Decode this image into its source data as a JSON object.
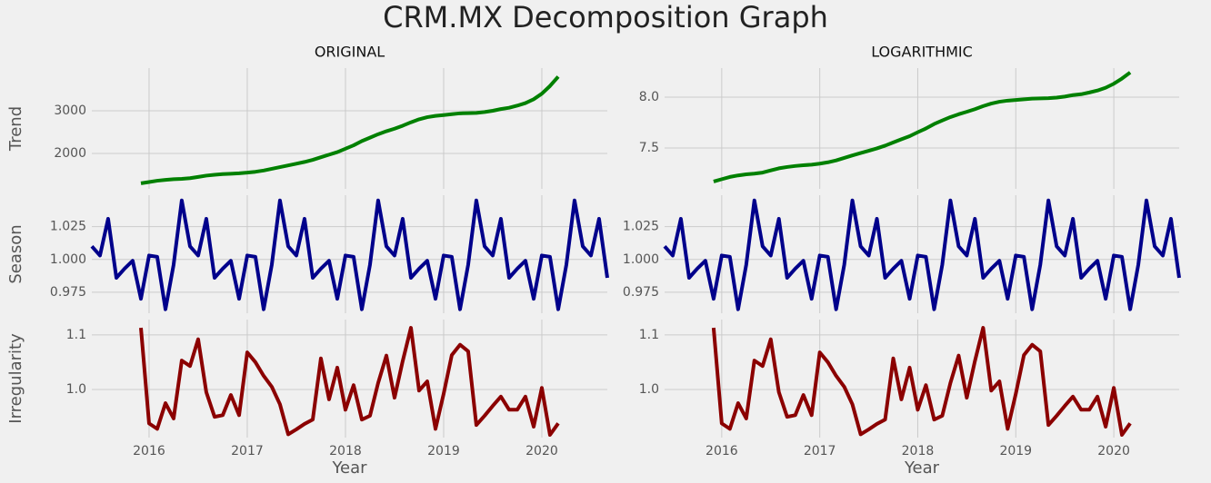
{
  "title": "CRM.MX Decomposition Graph",
  "chart_data": [
    {
      "type": "line",
      "title": "ORIGINAL",
      "ylabel": "Trend",
      "grid": true,
      "x": [
        2015.917,
        2016,
        2016.083,
        2016.167,
        2016.25,
        2016.333,
        2016.417,
        2016.5,
        2016.583,
        2016.667,
        2016.75,
        2016.833,
        2016.917,
        2017,
        2017.083,
        2017.167,
        2017.25,
        2017.333,
        2017.417,
        2017.5,
        2017.583,
        2017.667,
        2017.75,
        2017.833,
        2017.917,
        2018,
        2018.083,
        2018.167,
        2018.25,
        2018.333,
        2018.417,
        2018.5,
        2018.583,
        2018.667,
        2018.75,
        2018.833,
        2018.917,
        2019,
        2019.083,
        2019.167,
        2019.25,
        2019.333,
        2019.417,
        2019.5,
        2019.583,
        2019.667,
        2019.75,
        2019.833,
        2019.917,
        2020,
        2020.083,
        2020.167
      ],
      "series": [
        {
          "color": "#008000",
          "values": [
            1300,
            1330,
            1360,
            1380,
            1395,
            1405,
            1420,
            1450,
            1480,
            1500,
            1515,
            1525,
            1535,
            1550,
            1570,
            1600,
            1640,
            1680,
            1720,
            1760,
            1800,
            1850,
            1910,
            1970,
            2030,
            2110,
            2190,
            2290,
            2370,
            2450,
            2520,
            2580,
            2650,
            2730,
            2800,
            2850,
            2880,
            2900,
            2920,
            2940,
            2945,
            2950,
            2970,
            3000,
            3040,
            3070,
            3120,
            3180,
            3270,
            3400,
            3580,
            3800
          ]
        }
      ],
      "xlim": [
        2015.417,
        2020.667
      ],
      "xticks": [
        2016,
        2017,
        2018,
        2019,
        2020
      ],
      "ylim": [
        1170,
        4000
      ],
      "yticks": [
        2000,
        3000
      ]
    },
    {
      "type": "line",
      "ylabel": "Season",
      "grid": true,
      "x": [
        2015.417,
        2015.5,
        2015.583,
        2015.667,
        2015.75,
        2015.833,
        2015.917,
        2016,
        2016.083,
        2016.167,
        2016.25,
        2016.333,
        2016.417,
        2016.5,
        2016.583,
        2016.667,
        2016.75,
        2016.833,
        2016.917,
        2017,
        2017.083,
        2017.167,
        2017.25,
        2017.333,
        2017.417,
        2017.5,
        2017.583,
        2017.667,
        2017.75,
        2017.833,
        2017.917,
        2018,
        2018.083,
        2018.167,
        2018.25,
        2018.333,
        2018.417,
        2018.5,
        2018.583,
        2018.667,
        2018.75,
        2018.833,
        2018.917,
        2019,
        2019.083,
        2019.167,
        2019.25,
        2019.333,
        2019.417,
        2019.5,
        2019.583,
        2019.667,
        2019.75,
        2019.833,
        2019.917,
        2020,
        2020.083,
        2020.167,
        2020.25,
        2020.333,
        2020.417,
        2020.5,
        2020.583,
        2020.667
      ],
      "series": [
        {
          "color": "#00008b",
          "values": [
            1.01,
            1.003,
            1.031,
            0.986,
            0.993,
            0.999,
            0.97,
            1.003,
            1.002,
            0.962,
            0.996,
            1.045,
            1.01,
            1.003,
            1.031,
            0.986,
            0.993,
            0.999,
            0.97,
            1.003,
            1.002,
            0.962,
            0.996,
            1.045,
            1.01,
            1.003,
            1.031,
            0.986,
            0.993,
            0.999,
            0.97,
            1.003,
            1.002,
            0.962,
            0.996,
            1.045,
            1.01,
            1.003,
            1.031,
            0.986,
            0.993,
            0.999,
            0.97,
            1.003,
            1.002,
            0.962,
            0.996,
            1.045,
            1.01,
            1.003,
            1.031,
            0.986,
            0.993,
            0.999,
            0.97,
            1.003,
            1.002,
            0.962,
            0.996,
            1.045,
            1.01,
            1.003,
            1.031,
            0.986
          ]
        }
      ],
      "xlim": [
        2015.417,
        2020.667
      ],
      "xticks": [
        2016,
        2017,
        2018,
        2019,
        2020
      ],
      "ylim": [
        0.959,
        1.049
      ],
      "yticks": [
        0.975,
        {
          "value": 1,
          "label": "1.000"
        },
        1.025
      ]
    },
    {
      "type": "line",
      "ylabel": "Irregularity",
      "xlabel": "Year",
      "grid": true,
      "x": [
        2015.917,
        2016,
        2016.083,
        2016.167,
        2016.25,
        2016.333,
        2016.417,
        2016.5,
        2016.583,
        2016.667,
        2016.75,
        2016.833,
        2016.917,
        2017,
        2017.083,
        2017.167,
        2017.25,
        2017.333,
        2017.417,
        2017.5,
        2017.583,
        2017.667,
        2017.75,
        2017.833,
        2017.917,
        2018,
        2018.083,
        2018.167,
        2018.25,
        2018.333,
        2018.417,
        2018.5,
        2018.583,
        2018.667,
        2018.75,
        2018.833,
        2018.917,
        2019,
        2019.083,
        2019.167,
        2019.25,
        2019.333,
        2019.417,
        2019.5,
        2019.583,
        2019.667,
        2019.75,
        2019.833,
        2019.917,
        2020,
        2020.083,
        2020.167
      ],
      "series": [
        {
          "color": "#8b0000",
          "values": [
            1.113,
            0.938,
            0.928,
            0.975,
            0.947,
            1.053,
            1.043,
            1.092,
            0.995,
            0.95,
            0.953,
            0.99,
            0.953,
            1.068,
            1.05,
            1.025,
            1.005,
            0.973,
            0.918,
            0.927,
            0.937,
            0.945,
            1.057,
            0.982,
            1.04,
            0.963,
            1.008,
            0.945,
            0.952,
            1.012,
            1.062,
            0.985,
            1.052,
            1.113,
            0.998,
            1.015,
            0.928,
            0.992,
            1.063,
            1.082,
            1.07,
            0.935,
            0.952,
            0.97,
            0.987,
            0.963,
            0.963,
            0.987,
            0.932,
            1.003,
            0.917,
            0.938
          ]
        }
      ],
      "xlim": [
        2015.417,
        2020.667
      ],
      "xticks": [
        2016,
        2017,
        2018,
        2019,
        2020
      ],
      "ylim": [
        0.912,
        1.128
      ],
      "yticks": [
        {
          "value": 1,
          "label": "1.0"
        },
        1.1
      ]
    },
    {
      "type": "line",
      "title": "LOGARITHMIC",
      "grid": true,
      "x": [
        2015.917,
        2016,
        2016.083,
        2016.167,
        2016.25,
        2016.333,
        2016.417,
        2016.5,
        2016.583,
        2016.667,
        2016.75,
        2016.833,
        2016.917,
        2017,
        2017.083,
        2017.167,
        2017.25,
        2017.333,
        2017.417,
        2017.5,
        2017.583,
        2017.667,
        2017.75,
        2017.833,
        2017.917,
        2018,
        2018.083,
        2018.167,
        2018.25,
        2018.333,
        2018.417,
        2018.5,
        2018.583,
        2018.667,
        2018.75,
        2018.833,
        2018.917,
        2019,
        2019.083,
        2019.167,
        2019.25,
        2019.333,
        2019.417,
        2019.5,
        2019.583,
        2019.667,
        2019.75,
        2019.833,
        2019.917,
        2020,
        2020.083,
        2020.167
      ],
      "series": [
        {
          "color": "#008000",
          "values": [
            7.17,
            7.193,
            7.215,
            7.23,
            7.241,
            7.248,
            7.258,
            7.279,
            7.3,
            7.313,
            7.323,
            7.33,
            7.336,
            7.346,
            7.359,
            7.378,
            7.402,
            7.427,
            7.45,
            7.473,
            7.496,
            7.523,
            7.555,
            7.586,
            7.616,
            7.655,
            7.692,
            7.736,
            7.771,
            7.804,
            7.832,
            7.856,
            7.882,
            7.912,
            7.937,
            7.955,
            7.966,
            7.972,
            7.979,
            7.986,
            7.988,
            7.99,
            7.996,
            8.006,
            8.02,
            8.029,
            8.046,
            8.065,
            8.093,
            8.132,
            8.183,
            8.243
          ]
        }
      ],
      "xlim": [
        2015.417,
        2020.667
      ],
      "xticks": [
        2016,
        2017,
        2018,
        2019,
        2020
      ],
      "ylim": [
        7.098,
        8.286
      ],
      "yticks": [
        7.5,
        {
          "value": 8,
          "label": "8.0"
        }
      ]
    },
    {
      "type": "line",
      "grid": true,
      "x": [
        2015.417,
        2015.5,
        2015.583,
        2015.667,
        2015.75,
        2015.833,
        2015.917,
        2016,
        2016.083,
        2016.167,
        2016.25,
        2016.333,
        2016.417,
        2016.5,
        2016.583,
        2016.667,
        2016.75,
        2016.833,
        2016.917,
        2017,
        2017.083,
        2017.167,
        2017.25,
        2017.333,
        2017.417,
        2017.5,
        2017.583,
        2017.667,
        2017.75,
        2017.833,
        2017.917,
        2018,
        2018.083,
        2018.167,
        2018.25,
        2018.333,
        2018.417,
        2018.5,
        2018.583,
        2018.667,
        2018.75,
        2018.833,
        2018.917,
        2019,
        2019.083,
        2019.167,
        2019.25,
        2019.333,
        2019.417,
        2019.5,
        2019.583,
        2019.667,
        2019.75,
        2019.833,
        2019.917,
        2020,
        2020.083,
        2020.167,
        2020.25,
        2020.333,
        2020.417,
        2020.5,
        2020.583,
        2020.667
      ],
      "series": [
        {
          "color": "#00008b",
          "values": [
            1.01,
            1.003,
            1.031,
            0.986,
            0.993,
            0.999,
            0.97,
            1.003,
            1.002,
            0.962,
            0.996,
            1.045,
            1.01,
            1.003,
            1.031,
            0.986,
            0.993,
            0.999,
            0.97,
            1.003,
            1.002,
            0.962,
            0.996,
            1.045,
            1.01,
            1.003,
            1.031,
            0.986,
            0.993,
            0.999,
            0.97,
            1.003,
            1.002,
            0.962,
            0.996,
            1.045,
            1.01,
            1.003,
            1.031,
            0.986,
            0.993,
            0.999,
            0.97,
            1.003,
            1.002,
            0.962,
            0.996,
            1.045,
            1.01,
            1.003,
            1.031,
            0.986,
            0.993,
            0.999,
            0.97,
            1.003,
            1.002,
            0.962,
            0.996,
            1.045,
            1.01,
            1.003,
            1.031,
            0.986
          ]
        }
      ],
      "xlim": [
        2015.417,
        2020.667
      ],
      "xticks": [
        2016,
        2017,
        2018,
        2019,
        2020
      ],
      "ylim": [
        0.959,
        1.049
      ],
      "yticks": [
        0.975,
        {
          "value": 1,
          "label": "1.000"
        },
        1.025
      ]
    },
    {
      "type": "line",
      "xlabel": "Year",
      "grid": true,
      "x": [
        2015.917,
        2016,
        2016.083,
        2016.167,
        2016.25,
        2016.333,
        2016.417,
        2016.5,
        2016.583,
        2016.667,
        2016.75,
        2016.833,
        2016.917,
        2017,
        2017.083,
        2017.167,
        2017.25,
        2017.333,
        2017.417,
        2017.5,
        2017.583,
        2017.667,
        2017.75,
        2017.833,
        2017.917,
        2018,
        2018.083,
        2018.167,
        2018.25,
        2018.333,
        2018.417,
        2018.5,
        2018.583,
        2018.667,
        2018.75,
        2018.833,
        2018.917,
        2019,
        2019.083,
        2019.167,
        2019.25,
        2019.333,
        2019.417,
        2019.5,
        2019.583,
        2019.667,
        2019.75,
        2019.833,
        2019.917,
        2020,
        2020.083,
        2020.167
      ],
      "series": [
        {
          "color": "#8b0000",
          "values": [
            1.113,
            0.938,
            0.928,
            0.975,
            0.947,
            1.053,
            1.043,
            1.092,
            0.995,
            0.95,
            0.953,
            0.99,
            0.953,
            1.068,
            1.05,
            1.025,
            1.005,
            0.973,
            0.918,
            0.927,
            0.937,
            0.945,
            1.057,
            0.982,
            1.04,
            0.963,
            1.008,
            0.945,
            0.952,
            1.012,
            1.062,
            0.985,
            1.052,
            1.113,
            0.998,
            1.015,
            0.928,
            0.992,
            1.063,
            1.082,
            1.07,
            0.935,
            0.952,
            0.97,
            0.987,
            0.963,
            0.963,
            0.987,
            0.932,
            1.003,
            0.917,
            0.938
          ]
        }
      ],
      "xlim": [
        2015.417,
        2020.667
      ],
      "xticks": [
        2016,
        2017,
        2018,
        2019,
        2020
      ],
      "ylim": [
        0.912,
        1.128
      ],
      "yticks": [
        {
          "value": 1,
          "label": "1.0"
        },
        1.1
      ]
    }
  ]
}
